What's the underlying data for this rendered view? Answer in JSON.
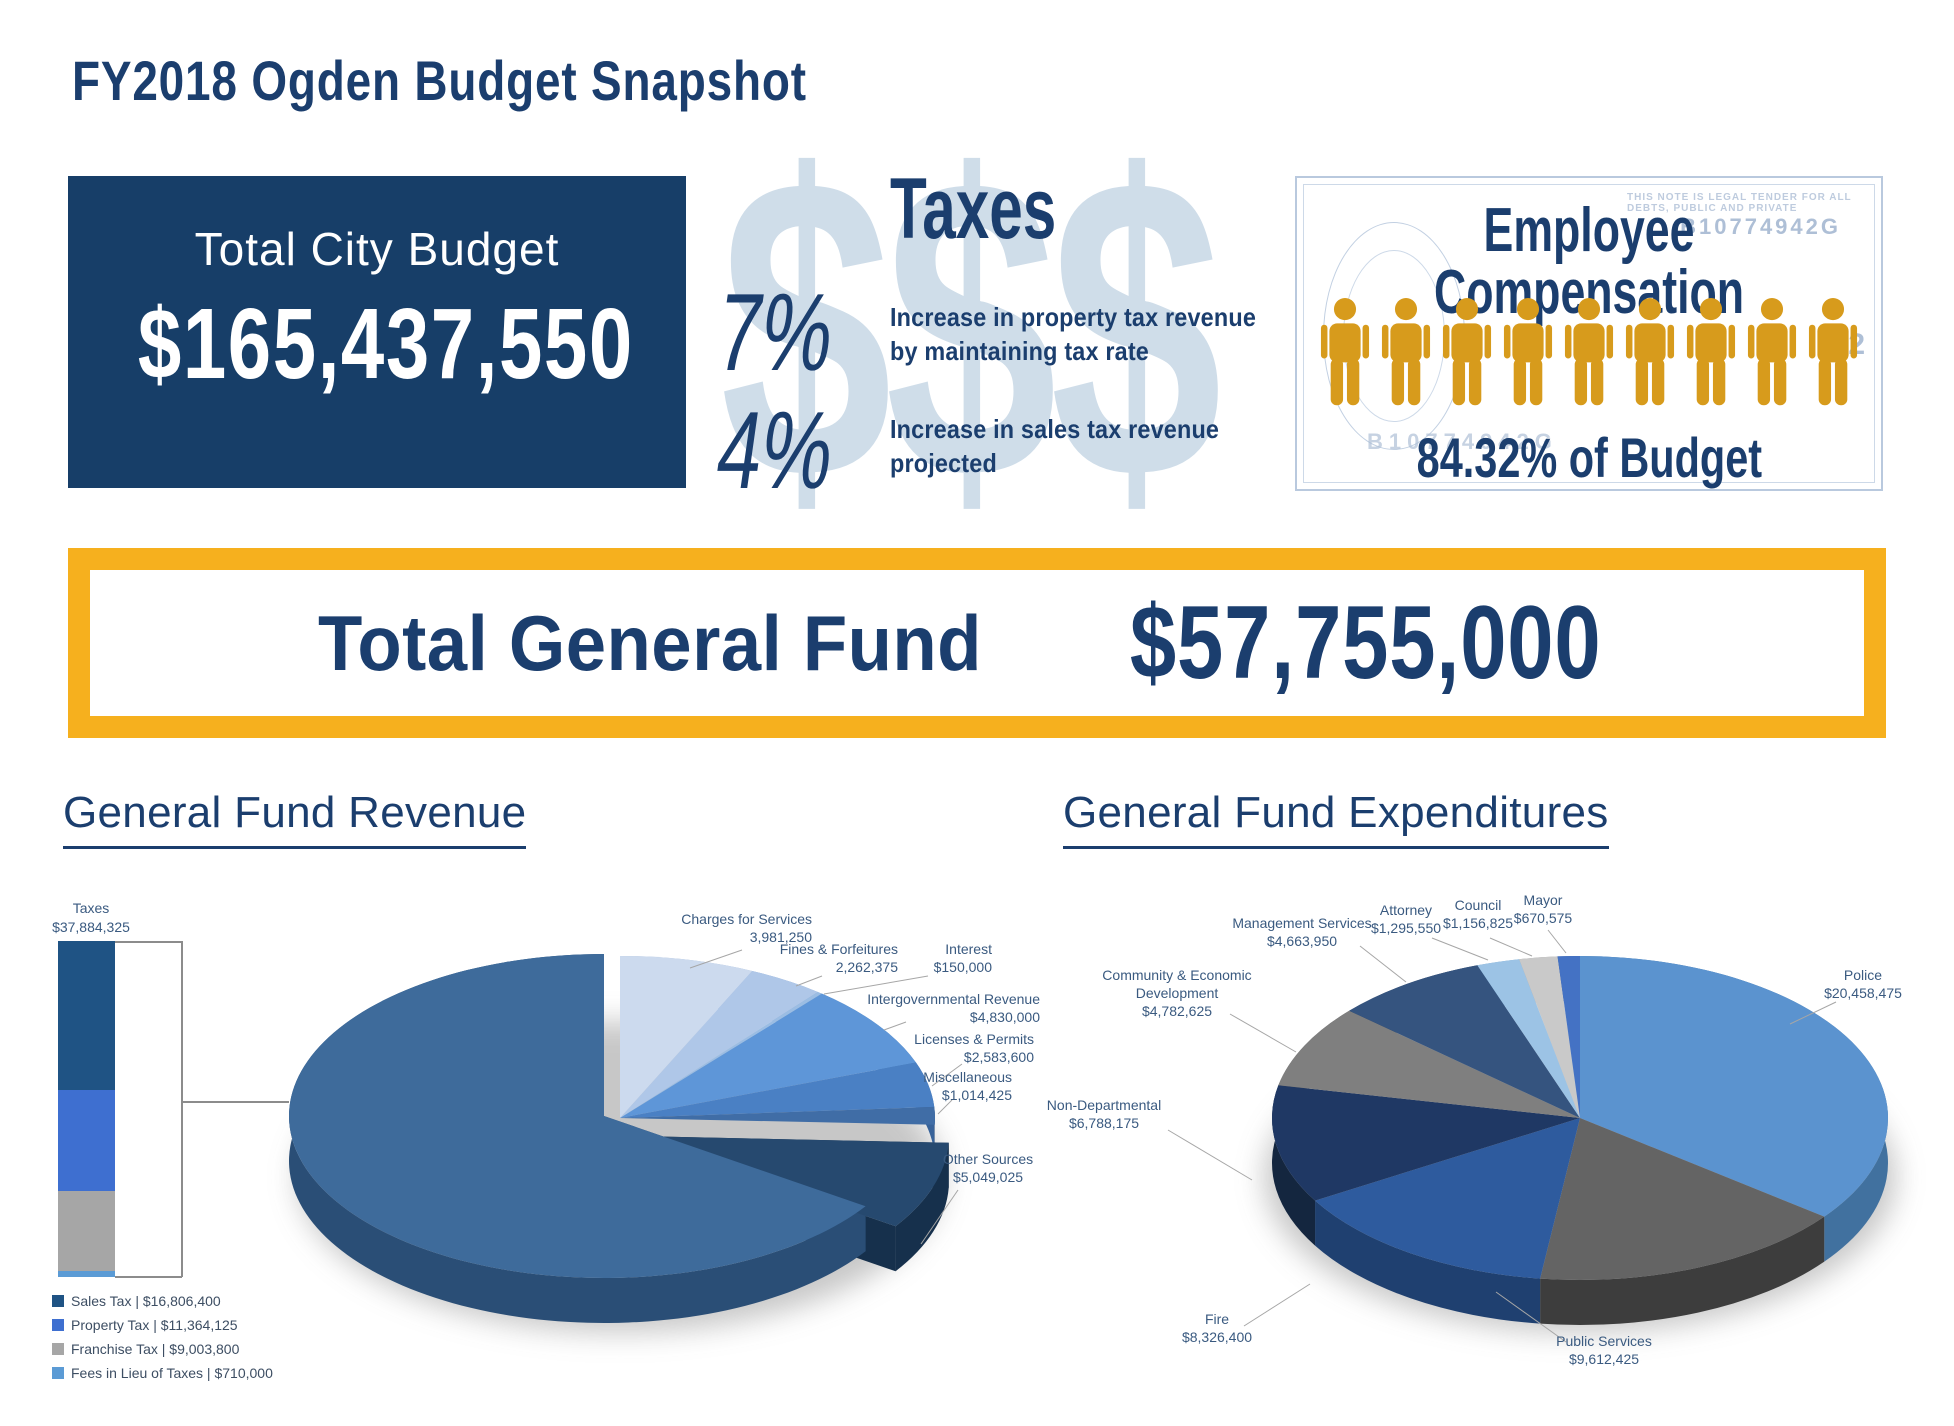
{
  "page_title": "FY2018 Ogden Budget Snapshot",
  "colors": {
    "navy": "#1b3e6e",
    "card_navy": "#173e68",
    "banner_gold": "#f6b01e",
    "people_orange": "#d79b1c",
    "watermark_blue": "#cfdde9"
  },
  "total_city_budget": {
    "label": "Total City Budget",
    "amount": "$165,437,550"
  },
  "taxes_panel": {
    "heading": "Taxes",
    "watermark": "$$$",
    "items": [
      {
        "pct": "7%",
        "desc_lines": [
          "Increase in property tax revenue",
          "by maintaining tax rate"
        ]
      },
      {
        "pct": "4%",
        "desc_lines": [
          "Increase in sales tax revenue",
          "projected"
        ]
      }
    ]
  },
  "employee_panel": {
    "heading": "Employee Compensation",
    "people_count": 9,
    "footer": "84.32% of Budget",
    "bill_serial": "B10774942G",
    "bill_corner_digit": "2",
    "bill_micro_text": "THIS NOTE IS LEGAL TENDER FOR ALL DEBTS, PUBLIC AND PRIVATE"
  },
  "general_fund_banner": {
    "label": "Total General Fund",
    "amount": "$57,755,000"
  },
  "chart_data": [
    {
      "type": "pie",
      "title": "General Fund Revenue",
      "total": 57755000,
      "legend_position": "callout-labels",
      "slices": [
        {
          "name": "Charges for Services",
          "value": 3981250,
          "value_label": "3,981,250",
          "color": "#ccdaee",
          "side": "#9db4d4"
        },
        {
          "name": "Fines & Forfeitures",
          "value": 2262375,
          "value_label": "2,262,375",
          "color": "#afc7e8",
          "side": "#86a5cc"
        },
        {
          "name": "Interest",
          "value": 150000,
          "value_label": "$150,000",
          "color": "#9bbde3",
          "side": "#7da3cd"
        },
        {
          "name": "Intergovernmental Revenue",
          "value": 4830000,
          "value_label": "$4,830,000",
          "color": "#5e96d8",
          "side": "#4677ad"
        },
        {
          "name": "Licenses & Permits",
          "value": 2583600,
          "value_label": "$2,583,600",
          "color": "#4a80c4",
          "side": "#38639a"
        },
        {
          "name": "Miscellaneous",
          "value": 1014425,
          "value_label": "$1,014,425",
          "color": "#406da6",
          "side": "#2f5380"
        },
        {
          "name": "Other Sources",
          "value": 5049025,
          "value_label": "$5,049,025",
          "color": "#26496f",
          "side": "#16304c",
          "explode": [
            14,
            18
          ]
        },
        {
          "name": "Taxes",
          "value": 37884325,
          "value_label": "$37,884,325",
          "color": "#3e6b9b",
          "side": "#2a4e76",
          "explode": [
            -16,
            -2
          ]
        }
      ],
      "taxes_breakdown": {
        "type": "stacked-bar",
        "total": 37884325,
        "segments": [
          {
            "name": "Sales Tax",
            "value": 16806400,
            "value_label": "$16,806,400",
            "color": "#1f5384"
          },
          {
            "name": "Property Tax",
            "value": 11364125,
            "value_label": "$11,364,125",
            "color": "#3e6fd0"
          },
          {
            "name": "Franchise Tax",
            "value": 9003800,
            "value_label": "$9,003,800",
            "color": "#a6a6a6"
          },
          {
            "name": "Fees in Lieu of Taxes",
            "value": 710000,
            "value_label": "$710,000",
            "color": "#5b9bd5"
          }
        ]
      }
    },
    {
      "type": "pie",
      "title": "General Fund Expenditures",
      "total": 57755000,
      "legend_position": "callout-labels",
      "slices": [
        {
          "name": "Police",
          "value": 20458475,
          "value_label": "$20,458,475",
          "color": "#5b93cf",
          "side": "#41719f"
        },
        {
          "name": "Public Services",
          "value": 9612425,
          "value_label": "$9,612,425",
          "color": "#646464",
          "side": "#3d3d3d"
        },
        {
          "name": "Fire",
          "value": 8326400,
          "value_label": "$8,326,400",
          "color": "#2e5b9e",
          "side": "#1f4070"
        },
        {
          "name": "Non-Departmental",
          "value": 6788175,
          "value_label": "$6,788,175",
          "color": "#1f3864",
          "side": "#14263f"
        },
        {
          "name": "Community & Economic\nDevelopment",
          "value": 4782625,
          "value_label": "$4,782,625",
          "color": "#7f7f7f",
          "side": "#5b5b5b"
        },
        {
          "name": "Management Services",
          "value": 4663950,
          "value_label": "$4,663,950",
          "color": "#35547f",
          "side": "#243a59"
        },
        {
          "name": "Attorney",
          "value": 1295550,
          "value_label": "$1,295,550",
          "color": "#9cc3e5",
          "side": "#74a0c6"
        },
        {
          "name": "Council",
          "value": 1156825,
          "value_label": "$1,156,825",
          "color": "#c9c9c9",
          "side": "#9f9f9f"
        },
        {
          "name": "Mayor",
          "value": 670575,
          "value_label": "$670,575",
          "color": "#4472c4",
          "side": "#305397"
        }
      ]
    }
  ]
}
